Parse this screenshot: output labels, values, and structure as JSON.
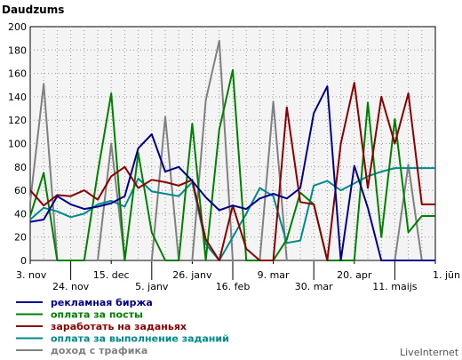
{
  "chart_data": {
    "type": "line",
    "title": "Daudzums",
    "ylim": [
      0,
      200
    ],
    "y_ticks": [
      0,
      20,
      40,
      60,
      80,
      100,
      120,
      140,
      160,
      180,
      200
    ],
    "grid": true,
    "x_tick_labels": [
      {
        "label": "3. nov",
        "x": 0,
        "row": 1
      },
      {
        "label": "24. nov",
        "x": 3,
        "row": 2
      },
      {
        "label": "15. dec",
        "x": 6,
        "row": 1
      },
      {
        "label": "5. janv",
        "x": 9,
        "row": 2
      },
      {
        "label": "26. janv",
        "x": 12,
        "row": 1
      },
      {
        "label": "16. feb",
        "x": 15,
        "row": 2
      },
      {
        "label": "9. mar",
        "x": 18,
        "row": 1
      },
      {
        "label": "30. mar",
        "x": 21,
        "row": 2
      },
      {
        "label": "20. apr",
        "x": 24,
        "row": 1
      },
      {
        "label": "11. maijs",
        "x": 27,
        "row": 2
      },
      {
        "label": "1. jūn",
        "x": 30,
        "row": 1
      }
    ],
    "legend_position": "bottom-left",
    "credit": "LiveInternet",
    "x_count": 31,
    "series": [
      {
        "name": "рекламная биржа",
        "color": "#00008b",
        "values": [
          33,
          35,
          55,
          48,
          44,
          46,
          49,
          55,
          96,
          108,
          76,
          80,
          68,
          54,
          43,
          47,
          44,
          53,
          57,
          53,
          62,
          126,
          149,
          0,
          81,
          45,
          0,
          0,
          0,
          0,
          0
        ]
      },
      {
        "name": "оплата за посты",
        "color": "#008000",
        "values": [
          38,
          75,
          0,
          0,
          0,
          75,
          143,
          0,
          92,
          24,
          0,
          0,
          117,
          0,
          112,
          163,
          0,
          0,
          0,
          18,
          58,
          48,
          0,
          0,
          0,
          135,
          20,
          121,
          24,
          38,
          38
        ]
      },
      {
        "name": "заработать на заданьях",
        "color": "#8b0000",
        "values": [
          60,
          47,
          56,
          55,
          60,
          52,
          72,
          80,
          62,
          69,
          67,
          64,
          69,
          18,
          0,
          47,
          10,
          0,
          0,
          131,
          50,
          48,
          0,
          100,
          152,
          62,
          140,
          100,
          143,
          48,
          48
        ]
      },
      {
        "name": "оплата за выполнение заданий",
        "color": "#008b8b",
        "values": [
          35,
          45,
          42,
          37,
          40,
          48,
          51,
          46,
          70,
          59,
          57,
          55,
          67,
          14,
          0,
          20,
          40,
          62,
          55,
          15,
          17,
          64,
          68,
          60,
          66,
          72,
          76,
          79,
          79,
          79,
          79
        ]
      },
      {
        "name": "доход с трафика",
        "color": "#808080",
        "values": [
          50,
          151,
          0,
          0,
          0,
          0,
          100,
          0,
          0,
          0,
          123,
          0,
          0,
          137,
          188,
          0,
          0,
          0,
          136,
          0,
          0,
          0,
          0,
          0,
          0,
          0,
          0,
          0,
          82,
          0,
          0
        ]
      }
    ]
  }
}
